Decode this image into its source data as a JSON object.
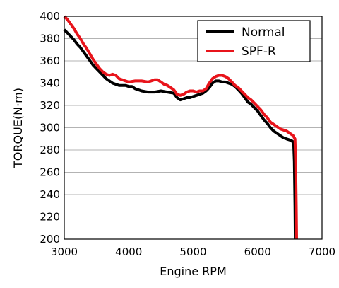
{
  "chart_data": {
    "type": "line",
    "xlabel": "Engine RPM",
    "ylabel": "TORQUE(N·m)",
    "xlim": [
      3000,
      7000
    ],
    "ylim": [
      200,
      400
    ],
    "xticks": [
      3000,
      4000,
      5000,
      6000,
      7000
    ],
    "yticks": [
      200,
      220,
      240,
      260,
      280,
      300,
      320,
      340,
      360,
      380,
      400
    ],
    "grid": "horizontal",
    "legend": "top-right",
    "series": [
      {
        "name": "Normal",
        "color": "#000000",
        "points": [
          [
            3000,
            388
          ],
          [
            3050,
            385
          ],
          [
            3100,
            382
          ],
          [
            3150,
            379
          ],
          [
            3200,
            375
          ],
          [
            3250,
            372
          ],
          [
            3300,
            368
          ],
          [
            3350,
            364
          ],
          [
            3400,
            360
          ],
          [
            3450,
            356
          ],
          [
            3500,
            353
          ],
          [
            3550,
            350
          ],
          [
            3600,
            347
          ],
          [
            3650,
            344
          ],
          [
            3700,
            342
          ],
          [
            3750,
            340
          ],
          [
            3800,
            339
          ],
          [
            3850,
            338
          ],
          [
            3900,
            338
          ],
          [
            3950,
            338
          ],
          [
            4000,
            337
          ],
          [
            4050,
            337
          ],
          [
            4100,
            335
          ],
          [
            4150,
            334
          ],
          [
            4200,
            333
          ],
          [
            4300,
            332
          ],
          [
            4400,
            332
          ],
          [
            4500,
            333
          ],
          [
            4600,
            332
          ],
          [
            4700,
            331
          ],
          [
            4750,
            327
          ],
          [
            4800,
            325
          ],
          [
            4850,
            326
          ],
          [
            4900,
            327
          ],
          [
            4950,
            327
          ],
          [
            5000,
            328
          ],
          [
            5050,
            329
          ],
          [
            5100,
            330
          ],
          [
            5150,
            331
          ],
          [
            5200,
            333
          ],
          [
            5250,
            336
          ],
          [
            5300,
            340
          ],
          [
            5350,
            342
          ],
          [
            5400,
            342
          ],
          [
            5450,
            341
          ],
          [
            5500,
            341
          ],
          [
            5550,
            340
          ],
          [
            5600,
            339
          ],
          [
            5650,
            337
          ],
          [
            5700,
            334
          ],
          [
            5750,
            331
          ],
          [
            5800,
            327
          ],
          [
            5850,
            323
          ],
          [
            5900,
            321
          ],
          [
            5950,
            318
          ],
          [
            6000,
            315
          ],
          [
            6050,
            311
          ],
          [
            6100,
            307
          ],
          [
            6150,
            304
          ],
          [
            6200,
            300
          ],
          [
            6250,
            297
          ],
          [
            6300,
            295
          ],
          [
            6350,
            293
          ],
          [
            6400,
            291
          ],
          [
            6450,
            290
          ],
          [
            6500,
            289
          ],
          [
            6540,
            288
          ],
          [
            6560,
            285
          ],
          [
            6570,
            270
          ],
          [
            6580,
            230
          ],
          [
            6585,
            200
          ]
        ]
      },
      {
        "name": "SPF-R",
        "color": "#e8141b",
        "points": [
          [
            3000,
            400
          ],
          [
            3050,
            397
          ],
          [
            3100,
            393
          ],
          [
            3150,
            389
          ],
          [
            3200,
            384
          ],
          [
            3250,
            380
          ],
          [
            3300,
            375
          ],
          [
            3350,
            371
          ],
          [
            3400,
            366
          ],
          [
            3450,
            361
          ],
          [
            3500,
            357
          ],
          [
            3550,
            353
          ],
          [
            3600,
            350
          ],
          [
            3650,
            348
          ],
          [
            3700,
            347
          ],
          [
            3750,
            348
          ],
          [
            3800,
            347
          ],
          [
            3850,
            344
          ],
          [
            3900,
            343
          ],
          [
            3950,
            342
          ],
          [
            4000,
            341
          ],
          [
            4100,
            342
          ],
          [
            4200,
            342
          ],
          [
            4300,
            341
          ],
          [
            4350,
            342
          ],
          [
            4400,
            343
          ],
          [
            4450,
            343
          ],
          [
            4500,
            341
          ],
          [
            4550,
            339
          ],
          [
            4600,
            338
          ],
          [
            4650,
            336
          ],
          [
            4700,
            334
          ],
          [
            4750,
            330
          ],
          [
            4800,
            329
          ],
          [
            4850,
            330
          ],
          [
            4900,
            332
          ],
          [
            4950,
            333
          ],
          [
            5000,
            333
          ],
          [
            5050,
            332
          ],
          [
            5100,
            333
          ],
          [
            5150,
            333
          ],
          [
            5200,
            335
          ],
          [
            5250,
            340
          ],
          [
            5300,
            344
          ],
          [
            5350,
            346
          ],
          [
            5400,
            347
          ],
          [
            5450,
            347
          ],
          [
            5500,
            346
          ],
          [
            5550,
            344
          ],
          [
            5600,
            341
          ],
          [
            5650,
            338
          ],
          [
            5700,
            336
          ],
          [
            5750,
            333
          ],
          [
            5800,
            330
          ],
          [
            5850,
            327
          ],
          [
            5900,
            325
          ],
          [
            5950,
            322
          ],
          [
            6000,
            319
          ],
          [
            6050,
            316
          ],
          [
            6100,
            312
          ],
          [
            6150,
            309
          ],
          [
            6200,
            305
          ],
          [
            6250,
            303
          ],
          [
            6300,
            301
          ],
          [
            6350,
            299
          ],
          [
            6400,
            298
          ],
          [
            6450,
            297
          ],
          [
            6500,
            295
          ],
          [
            6550,
            293
          ],
          [
            6580,
            290
          ],
          [
            6590,
            270
          ],
          [
            6600,
            230
          ],
          [
            6605,
            200
          ]
        ]
      }
    ]
  }
}
